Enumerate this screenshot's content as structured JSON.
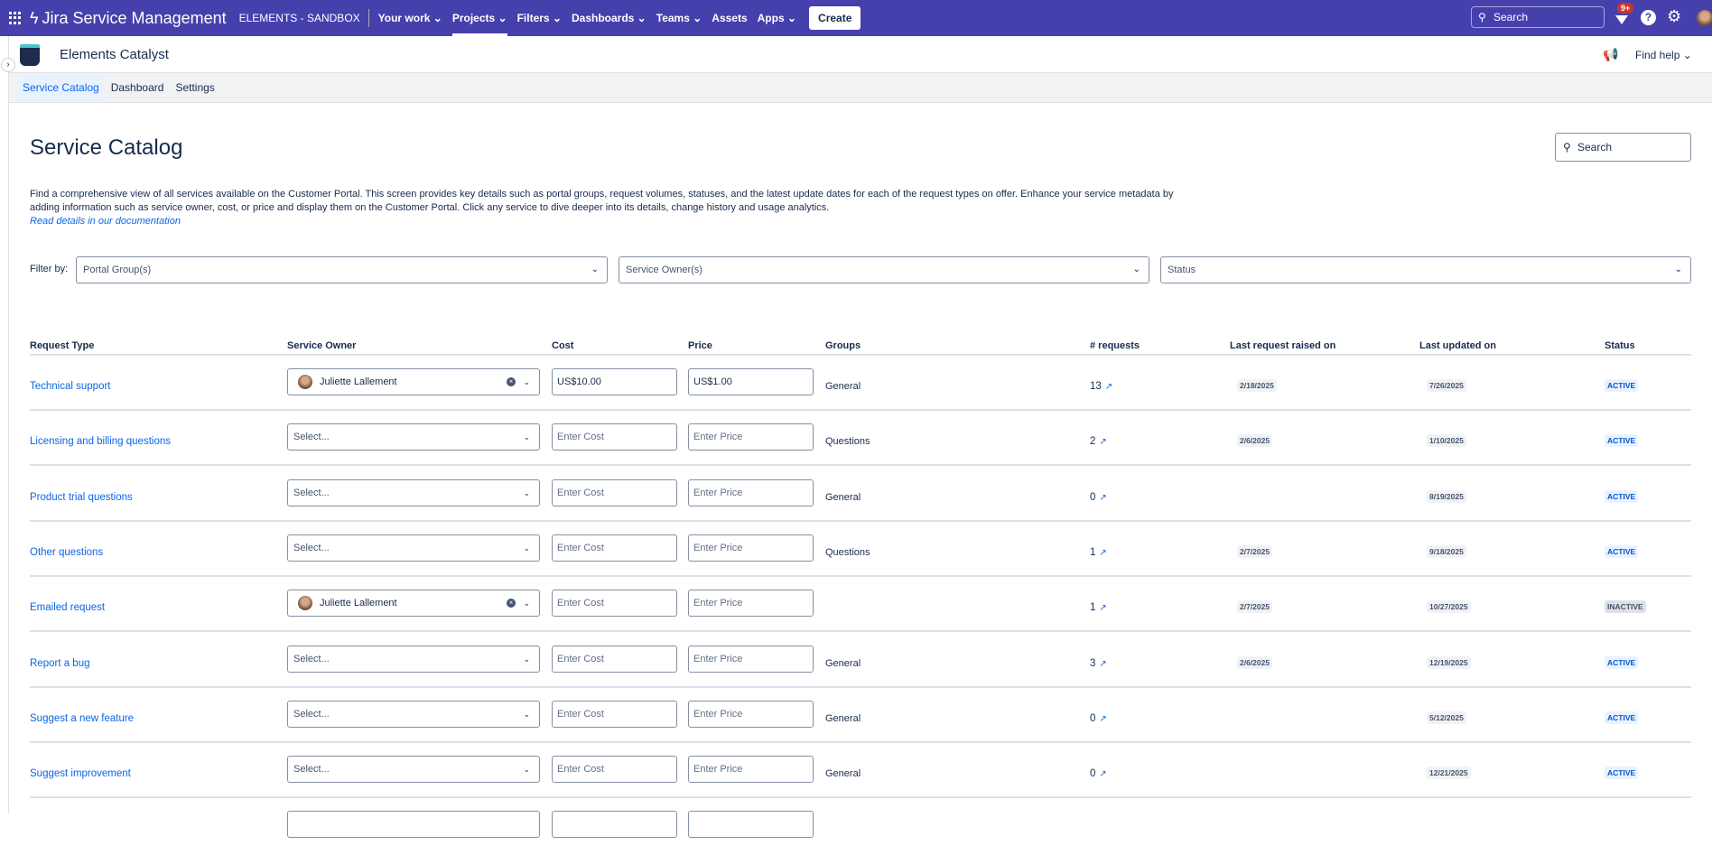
{
  "topnav": {
    "product": "Jira Service Management",
    "project": "ELEMENTS - SANDBOX",
    "items": [
      {
        "label": "Your work ⌄"
      },
      {
        "label": "Projects ⌄"
      },
      {
        "label": "Filters ⌄"
      },
      {
        "label": "Dashboards ⌄"
      },
      {
        "label": "Teams ⌄"
      },
      {
        "label": "Assets"
      },
      {
        "label": "Apps ⌄"
      }
    ],
    "create": "Create",
    "search_placeholder": "Search",
    "notif_badge": "9+",
    "help": "?",
    "brand_color": "#4640ad"
  },
  "app": {
    "name": "Elements Catalyst",
    "find_help": "Find help"
  },
  "subnav": [
    {
      "label": "Service Catalog"
    },
    {
      "label": "Dashboard"
    },
    {
      "label": "Settings"
    }
  ],
  "page": {
    "title": "Service Catalog",
    "search_placeholder": "Search",
    "description": "Find a comprehensive view of all services available on the Customer Portal. This screen provides key details such as portal groups, request volumes, statuses, and the latest update dates for each of the request types on offer. Enhance your service metadata by adding information such as service owner, cost, or price and display them on the Customer Portal. Click any service to dive deeper into its details, change history and usage analytics.",
    "doc_link": "Read details in our documentation"
  },
  "filters": {
    "label": "Filter by:",
    "portal_group": "Portal Group(s)",
    "service_owner": "Service Owner(s)",
    "status": "Status"
  },
  "table": {
    "headers": [
      "Request Type",
      "Service Owner",
      "Cost",
      "Price",
      "Groups",
      "# requests",
      "Last request raised on",
      "Last updated on",
      "Status"
    ],
    "rows": [
      {
        "type": "Technical support",
        "owner": "Juliette Lallement",
        "cost": "US$10.00",
        "price": "US$1.00",
        "group": "General",
        "requests": "13",
        "raised": "2/18/2025",
        "updated": "7/26/2025",
        "status": "ACTIVE"
      },
      {
        "type": "Licensing and billing questions",
        "owner": "",
        "cost": "",
        "price": "",
        "group": "Questions",
        "requests": "2",
        "raised": "2/6/2025",
        "updated": "1/10/2025",
        "status": "ACTIVE"
      },
      {
        "type": "Product trial questions",
        "owner": "",
        "cost": "",
        "price": "",
        "group": "General",
        "requests": "0",
        "raised": "",
        "updated": "8/19/2025",
        "status": "ACTIVE"
      },
      {
        "type": "Other questions",
        "owner": "",
        "cost": "",
        "price": "",
        "group": "Questions",
        "requests": "1",
        "raised": "2/7/2025",
        "updated": "9/18/2025",
        "status": "ACTIVE"
      },
      {
        "type": "Emailed request",
        "owner": "Juliette Lallement",
        "cost": "",
        "price": "",
        "group": "",
        "requests": "1",
        "raised": "2/7/2025",
        "updated": "10/27/2025",
        "status": "INACTIVE"
      },
      {
        "type": "Report a bug",
        "owner": "",
        "cost": "",
        "price": "",
        "group": "General",
        "requests": "3",
        "raised": "2/6/2025",
        "updated": "12/19/2025",
        "status": "ACTIVE"
      },
      {
        "type": "Suggest a new feature",
        "owner": "",
        "cost": "",
        "price": "",
        "group": "General",
        "requests": "0",
        "raised": "",
        "updated": "5/12/2025",
        "status": "ACTIVE"
      },
      {
        "type": "Suggest improvement",
        "owner": "",
        "cost": "",
        "price": "",
        "group": "General",
        "requests": "0",
        "raised": "",
        "updated": "12/21/2025",
        "status": "ACTIVE"
      }
    ],
    "owner_placeholder": "Select...",
    "cost_placeholder": "Enter Cost",
    "price_placeholder": "Enter Price",
    "status_colors": {
      "ACTIVE": {
        "fg": "#0055cc",
        "bg": "#e9f2ff"
      },
      "INACTIVE": {
        "fg": "#44546f",
        "bg": "#dfe1e6"
      }
    }
  }
}
